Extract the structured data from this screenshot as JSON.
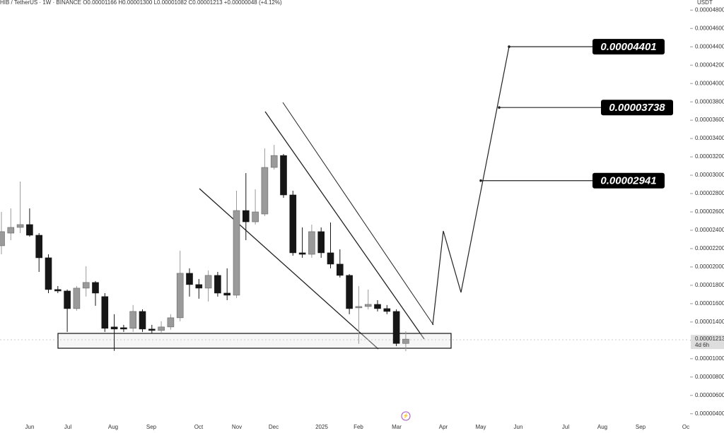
{
  "chart_data": {
    "type": "candlestick",
    "title": "HIB / TetherUS · 1W · BINANCE   O0.00001166  H0.00001300  L0.00001082  C0.00001213  +0.00000048 (+4.12%)",
    "y_label": "USDT",
    "countdown": "4d 6h",
    "up_color": "#9a9a9a",
    "down_color": "#161616",
    "ylim": [
      1.9e-06,
      4.91e-05
    ],
    "yticks": [
      {
        "value": 4e-06,
        "label": "0.00000400"
      },
      {
        "value": 6e-06,
        "label": "0.00000600"
      },
      {
        "value": 8e-06,
        "label": "0.00000800"
      },
      {
        "value": 1e-05,
        "label": "0.00001000"
      },
      {
        "value": 1.2e-05,
        "label": "0.00001200"
      },
      {
        "value": 1.4e-05,
        "label": "0.00001400"
      },
      {
        "value": 1.6e-05,
        "label": "0.00001600"
      },
      {
        "value": 1.8e-05,
        "label": "0.00001800"
      },
      {
        "value": 2e-05,
        "label": "0.00002000"
      },
      {
        "value": 2.2e-05,
        "label": "0.00002200"
      },
      {
        "value": 2.4e-05,
        "label": "0.00002400"
      },
      {
        "value": 2.6e-05,
        "label": "0.00002600"
      },
      {
        "value": 2.8e-05,
        "label": "0.00002800"
      },
      {
        "value": 3e-05,
        "label": "0.00003000"
      },
      {
        "value": 3.2e-05,
        "label": "0.00003200"
      },
      {
        "value": 3.4e-05,
        "label": "0.00003400"
      },
      {
        "value": 3.6e-05,
        "label": "0.00003600"
      },
      {
        "value": 3.8e-05,
        "label": "0.00003800"
      },
      {
        "value": 4e-05,
        "label": "0.00004000"
      },
      {
        "value": 4.2e-05,
        "label": "0.00004200"
      },
      {
        "value": 4.4e-05,
        "label": "0.00004400"
      },
      {
        "value": 4.6e-05,
        "label": "0.00004600"
      },
      {
        "value": 4.8e-05,
        "label": "0.00004800"
      }
    ],
    "x_axis_labels": [
      "Jun",
      "Jul",
      "Aug",
      "Sep",
      "Oct",
      "Nov",
      "Dec",
      "2025",
      "Feb",
      "Mar",
      "Apr",
      "May",
      "Jun",
      "Jul",
      "Aug",
      "Sep",
      "Oc"
    ],
    "open": [
      2.231e-05,
      2.369e-05,
      2.431e-05,
      2.462e-05,
      2.346e-05,
      2.1e-05,
      1.754e-05,
      1.738e-05,
      1.546e-05,
      1.769e-05,
      1.831e-05,
      1.677e-05,
      1.346e-05,
      1.338e-05,
      1.331e-05,
      1.515e-05,
      1.323e-05,
      1.308e-05,
      1.346e-05,
      1.446e-05,
      1.931e-05,
      1.808e-05,
      1.769e-05,
      1.908e-05,
      1.715e-05,
      1.692e-05,
      2.615e-05,
      2.492e-05,
      2.577e-05,
      3.085e-05,
      3.215e-05,
      2.785e-05,
      2.154e-05,
      2.138e-05,
      2.385e-05,
      2.154e-05,
      2.031e-05,
      1.908e-05,
      1.554e-05,
      1.569e-05,
      1.592e-05,
      1.546e-05,
      1.515e-05,
      1.166e-05
    ],
    "high": [
      2.6e-05,
      2.638e-05,
      2.931e-05,
      2.638e-05,
      2.369e-05,
      2.138e-05,
      1.792e-05,
      1.754e-05,
      1.792e-05,
      2.008e-05,
      1.846e-05,
      1.715e-05,
      1.485e-05,
      1.369e-05,
      1.585e-05,
      1.538e-05,
      1.369e-05,
      1.408e-05,
      1.485e-05,
      2.177e-05,
      1.985e-05,
      1.869e-05,
      1.962e-05,
      1.946e-05,
      1.985e-05,
      2.831e-05,
      3.023e-05,
      2.846e-05,
      3.292e-05,
      3.331e-05,
      3.231e-05,
      2.831e-05,
      2.431e-05,
      2.462e-05,
      2.431e-05,
      2.485e-05,
      2.192e-05,
      1.923e-05,
      1.792e-05,
      1.754e-05,
      1.638e-05,
      1.585e-05,
      1.538e-05,
      1.3e-05
    ],
    "low": [
      2.138e-05,
      2.292e-05,
      2.369e-05,
      2.331e-05,
      1.946e-05,
      1.715e-05,
      1.715e-05,
      1.292e-05,
      1.523e-05,
      1.677e-05,
      1.577e-05,
      1.292e-05,
      1.085e-05,
      1.292e-05,
      1.292e-05,
      1.292e-05,
      1.277e-05,
      1.277e-05,
      1.315e-05,
      1.408e-05,
      1.677e-05,
      1.654e-05,
      1.623e-05,
      1.677e-05,
      1.638e-05,
      1.662e-05,
      2.292e-05,
      2.462e-05,
      2.554e-05,
      3.062e-05,
      2.754e-05,
      2.123e-05,
      2.1e-05,
      2.1e-05,
      2.1e-05,
      1.985e-05,
      1.885e-05,
      1.485e-05,
      1.162e-05,
      1.538e-05,
      1.515e-05,
      1.485e-05,
      1.138e-05,
      1.082e-05
    ],
    "close": [
      2.385e-05,
      2.431e-05,
      2.462e-05,
      2.346e-05,
      2.1e-05,
      1.754e-05,
      1.738e-05,
      1.546e-05,
      1.769e-05,
      1.831e-05,
      1.715e-05,
      1.331e-05,
      1.323e-05,
      1.323e-05,
      1.515e-05,
      1.323e-05,
      1.308e-05,
      1.346e-05,
      1.446e-05,
      1.931e-05,
      1.808e-05,
      1.769e-05,
      1.908e-05,
      1.715e-05,
      1.692e-05,
      2.615e-05,
      2.492e-05,
      2.6e-05,
      3.085e-05,
      3.215e-05,
      2.785e-05,
      2.154e-05,
      2.138e-05,
      2.385e-05,
      2.154e-05,
      2.031e-05,
      1.908e-05,
      1.546e-05,
      1.569e-05,
      1.592e-05,
      1.546e-05,
      1.515e-05,
      1.166e-05,
      1.213e-05
    ],
    "annotations": [
      {
        "value": 4.401e-05
      },
      {
        "value": 3.738e-05
      },
      {
        "value": 2.941e-05
      }
    ]
  }
}
